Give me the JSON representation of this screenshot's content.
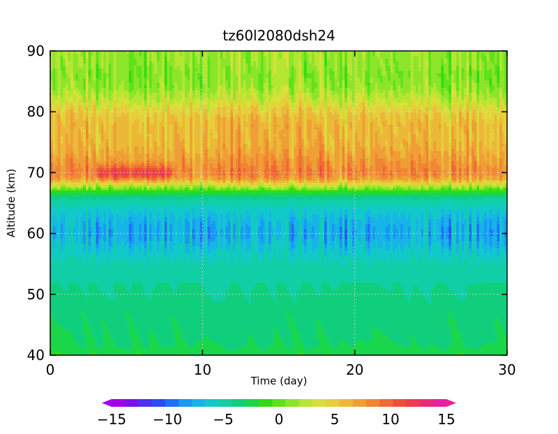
{
  "chart_data": {
    "type": "heatmap",
    "title": "tz60l2080dsh24",
    "xlabel": "Time (day)",
    "ylabel": "Altitude (km)",
    "xlim": [
      0,
      30
    ],
    "ylim": [
      40,
      90
    ],
    "x_ticks": [
      "0",
      "10",
      "20",
      "30"
    ],
    "y_ticks": [
      "40",
      "50",
      "60",
      "70",
      "80",
      "90"
    ],
    "grid": true,
    "colorbar": {
      "orientation": "horizontal",
      "position": "bottom",
      "range": [
        -15,
        15
      ],
      "ticks": [
        "−15",
        "−10",
        "−5",
        "0",
        "5",
        "10",
        "15"
      ],
      "colors": [
        "#a200e6",
        "#7a10f0",
        "#4f2ff5",
        "#2a4cf7",
        "#1f6ff9",
        "#1a96f5",
        "#16b4e8",
        "#12c9c9",
        "#10cfa6",
        "#10cf7c",
        "#1ad64a",
        "#32dc12",
        "#5ee21a",
        "#8ce52a",
        "#b4e632",
        "#d8e03a",
        "#e6cf3a",
        "#ecb838",
        "#ef9f36",
        "#f08634",
        "#f06a34",
        "#f04e3a",
        "#f03a50",
        "#ee2a76",
        "#e91ea0"
      ]
    },
    "z_description_profile": {
      "altitude_km": [
        40,
        42,
        44,
        46,
        48,
        50,
        52,
        54,
        56,
        58,
        60,
        62,
        64,
        66,
        67,
        68,
        69,
        70,
        72,
        74,
        76,
        78,
        80,
        82,
        84,
        86,
        88,
        90
      ],
      "mean_value": [
        -2,
        -3,
        -3.2,
        -3.4,
        -3.6,
        -3.8,
        -4.2,
        -4.8,
        -5.5,
        -6.5,
        -7.5,
        -7,
        -6,
        -4,
        -1,
        3,
        7,
        8.5,
        7.5,
        6.5,
        6,
        6,
        5,
        3,
        1.5,
        1,
        1.5,
        1.5
      ]
    }
  }
}
